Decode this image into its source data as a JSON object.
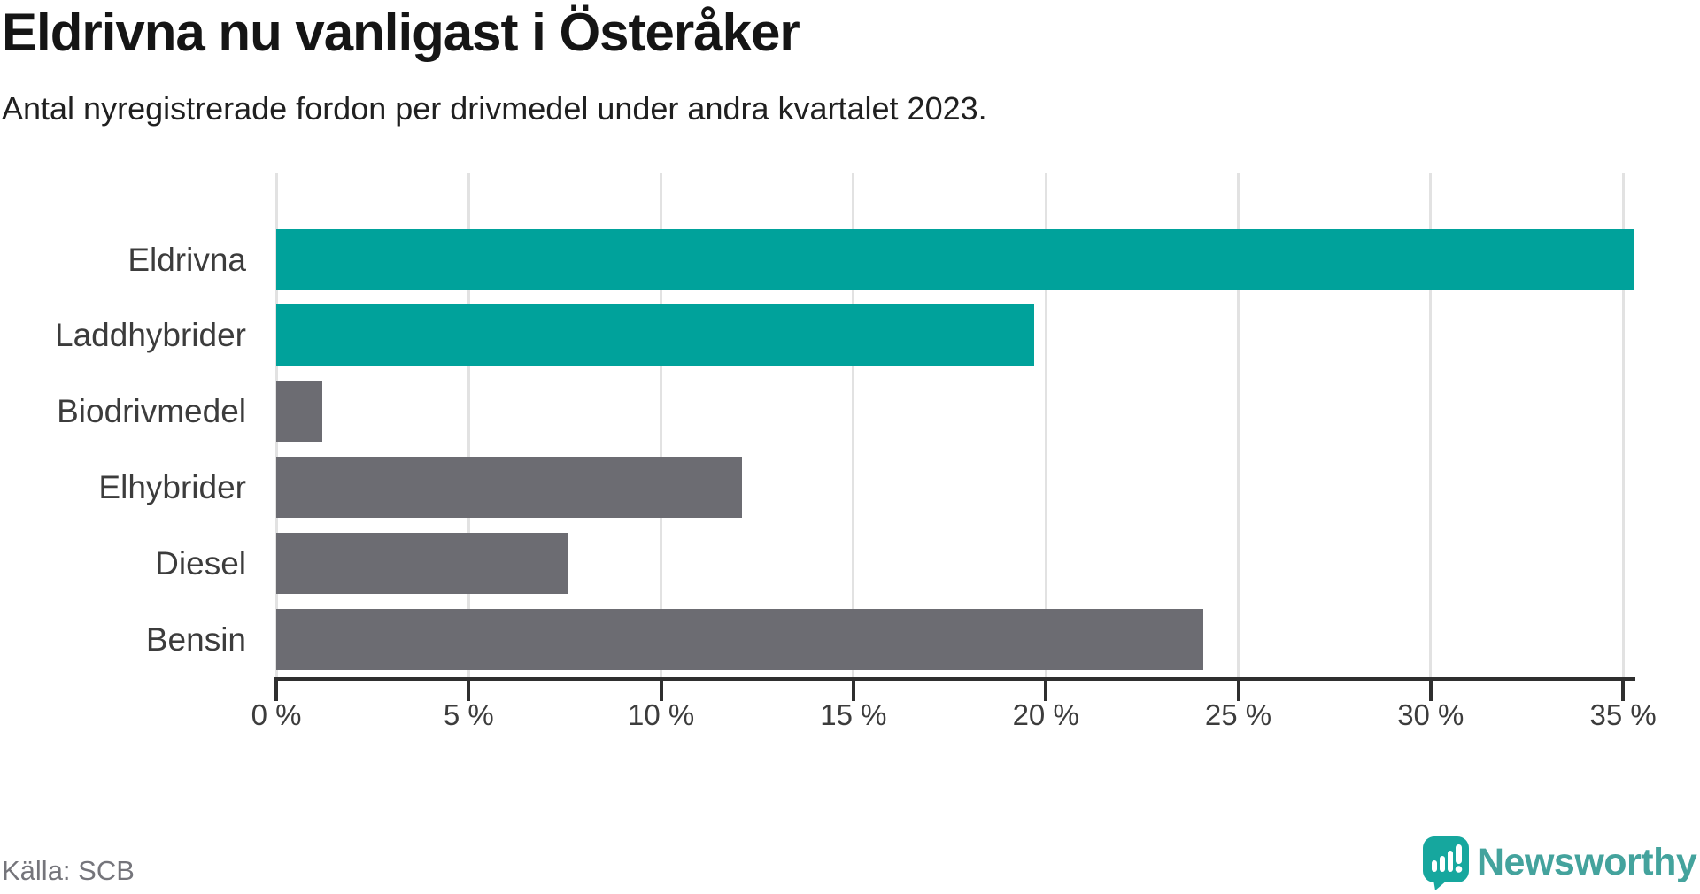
{
  "header": {
    "title": "Eldrivna nu vanligast i Österåker",
    "subtitle": "Antal nyregistrerade fordon per drivmedel under andra kvartalet 2023."
  },
  "colors": {
    "accent_teal": "#00a29b",
    "muted_gray": "#6c6c72",
    "grid": "#e2e2e2",
    "axis": "#2f2f2f",
    "logo_icon": "#16a79e",
    "logo_text": "#44a39d",
    "source_text": "#75757b"
  },
  "chart_data": {
    "type": "bar",
    "orientation": "horizontal",
    "title": "Eldrivna nu vanligast i Österåker",
    "subtitle": "Antal nyregistrerade fordon per drivmedel under andra kvartalet 2023.",
    "categories": [
      "Eldrivna",
      "Laddhybrider",
      "Biodrivmedel",
      "Elhybrider",
      "Diesel",
      "Bensin"
    ],
    "values": [
      35.3,
      19.7,
      1.2,
      12.1,
      7.6,
      24.1
    ],
    "unit": "%",
    "bar_colors": [
      "#00a29b",
      "#00a29b",
      "#6c6c72",
      "#6c6c72",
      "#6c6c72",
      "#6c6c72"
    ],
    "xlabel": "",
    "ylabel": "",
    "xlim": [
      0,
      35
    ],
    "tick_values": [
      0,
      5,
      10,
      15,
      20,
      25,
      30,
      35
    ],
    "tick_labels": [
      "0 %",
      "5 %",
      "10 %",
      "15 %",
      "20 %",
      "25 %",
      "30 %",
      "35 %"
    ],
    "grid": true,
    "legend": false
  },
  "footer": {
    "source": "Källa: SCB",
    "brand": "Newsworthy"
  }
}
